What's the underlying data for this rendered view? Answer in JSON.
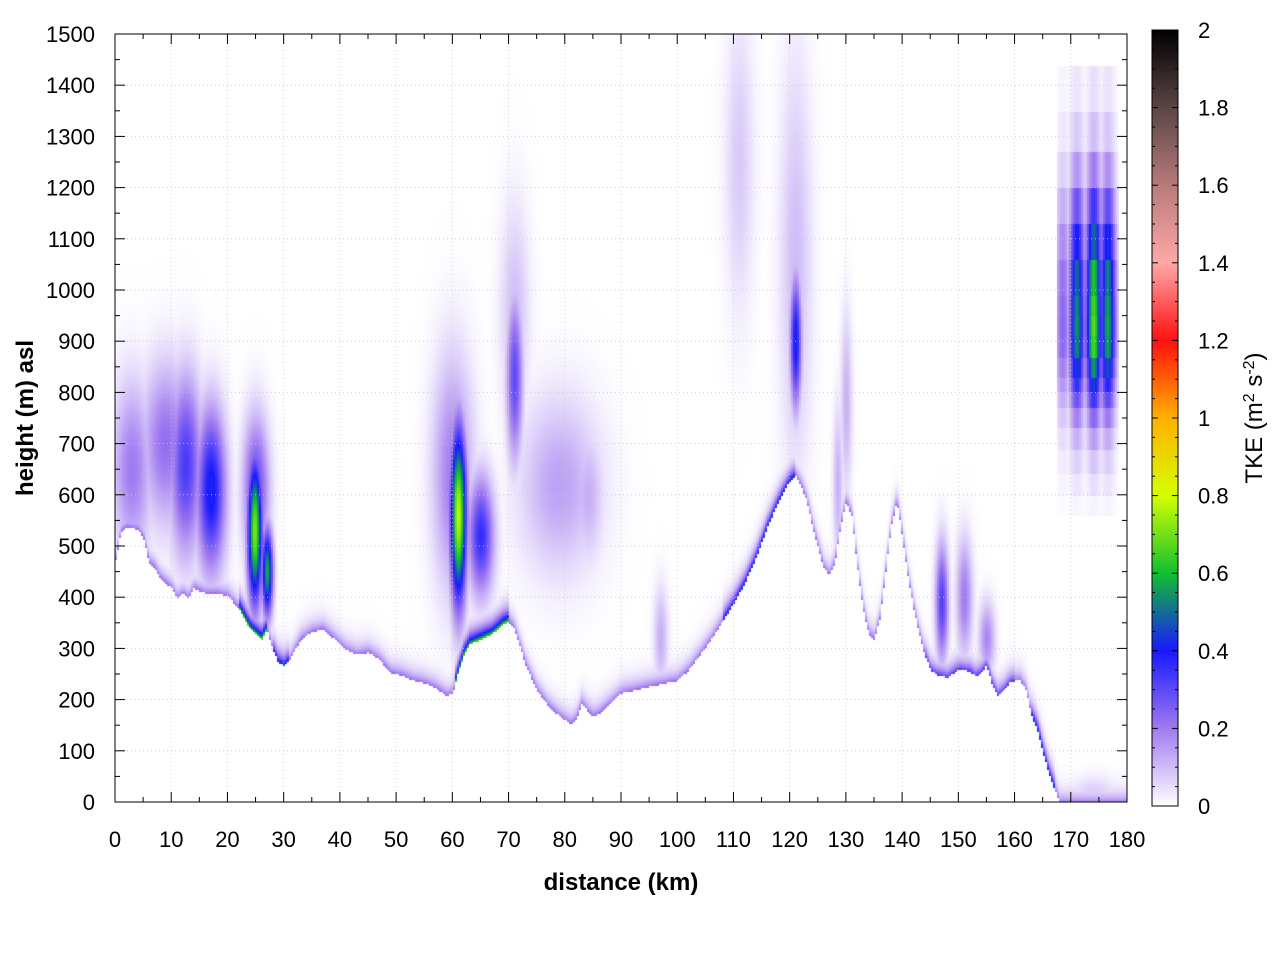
{
  "chart_data": {
    "type": "heatmap",
    "title": "",
    "xlabel": "distance (km)",
    "ylabel": "height (m) asl",
    "xlim": [
      0,
      180
    ],
    "ylim": [
      0,
      1500
    ],
    "xticks": [
      0,
      10,
      20,
      30,
      40,
      50,
      60,
      70,
      80,
      90,
      100,
      110,
      120,
      130,
      140,
      150,
      160,
      170,
      180
    ],
    "yticks": [
      0,
      100,
      200,
      300,
      400,
      500,
      600,
      700,
      800,
      900,
      1000,
      1100,
      1200,
      1300,
      1400,
      1500
    ],
    "grid": true,
    "colorbar": {
      "label_main": "TKE (m",
      "label_sup1": "2",
      "label_mid": " s",
      "label_sup2": "-2",
      "label_end": ")",
      "range": [
        0,
        2
      ],
      "ticks": [
        0,
        0.2,
        0.4,
        0.6,
        0.8,
        1,
        1.2,
        1.4,
        1.6,
        1.8,
        2
      ],
      "colors": [
        {
          "v": 0.0,
          "c": "#ffffff"
        },
        {
          "v": 0.2,
          "c": "#a07af0"
        },
        {
          "v": 0.4,
          "c": "#1818ff"
        },
        {
          "v": 0.6,
          "c": "#10c030"
        },
        {
          "v": 0.8,
          "c": "#d4ff00"
        },
        {
          "v": 1.0,
          "c": "#ffb000"
        },
        {
          "v": 1.2,
          "c": "#ff1010"
        },
        {
          "v": 1.4,
          "c": "#ffa8a8"
        },
        {
          "v": 1.6,
          "c": "#b87a7a"
        },
        {
          "v": 1.8,
          "c": "#5a4545"
        },
        {
          "v": 2.0,
          "c": "#000000"
        }
      ]
    },
    "terrain": [
      [
        0,
        470
      ],
      [
        1,
        530
      ],
      [
        2,
        540
      ],
      [
        4,
        535
      ],
      [
        5,
        520
      ],
      [
        6,
        470
      ],
      [
        7,
        460
      ],
      [
        8,
        440
      ],
      [
        10,
        420
      ],
      [
        11,
        400
      ],
      [
        12,
        410
      ],
      [
        13,
        400
      ],
      [
        14,
        420
      ],
      [
        16,
        410
      ],
      [
        18,
        410
      ],
      [
        20,
        405
      ],
      [
        22,
        380
      ],
      [
        24,
        340
      ],
      [
        26,
        320
      ],
      [
        27,
        340
      ],
      [
        28,
        300
      ],
      [
        29,
        275
      ],
      [
        30,
        270
      ],
      [
        31,
        280
      ],
      [
        33,
        320
      ],
      [
        35,
        335
      ],
      [
        37,
        340
      ],
      [
        39,
        320
      ],
      [
        41,
        300
      ],
      [
        43,
        290
      ],
      [
        45,
        295
      ],
      [
        47,
        280
      ],
      [
        49,
        255
      ],
      [
        51,
        250
      ],
      [
        53,
        240
      ],
      [
        55,
        235
      ],
      [
        57,
        225
      ],
      [
        59,
        210
      ],
      [
        60,
        215
      ],
      [
        61,
        255
      ],
      [
        62,
        290
      ],
      [
        63,
        310
      ],
      [
        65,
        320
      ],
      [
        67,
        330
      ],
      [
        69,
        350
      ],
      [
        70,
        355
      ],
      [
        71,
        340
      ],
      [
        73,
        270
      ],
      [
        75,
        220
      ],
      [
        77,
        190
      ],
      [
        79,
        170
      ],
      [
        81,
        155
      ],
      [
        82,
        165
      ],
      [
        83,
        195
      ],
      [
        84,
        180
      ],
      [
        85,
        170
      ],
      [
        86,
        175
      ],
      [
        88,
        195
      ],
      [
        90,
        215
      ],
      [
        92,
        220
      ],
      [
        95,
        228
      ],
      [
        98,
        235
      ],
      [
        100,
        240
      ],
      [
        102,
        260
      ],
      [
        104,
        290
      ],
      [
        106,
        320
      ],
      [
        108,
        355
      ],
      [
        110,
        390
      ],
      [
        112,
        430
      ],
      [
        114,
        480
      ],
      [
        116,
        540
      ],
      [
        118,
        590
      ],
      [
        120,
        630
      ],
      [
        121,
        640
      ],
      [
        122,
        620
      ],
      [
        123,
        590
      ],
      [
        124,
        540
      ],
      [
        125,
        500
      ],
      [
        126,
        460
      ],
      [
        127,
        445
      ],
      [
        128,
        470
      ],
      [
        129,
        540
      ],
      [
        130,
        590
      ],
      [
        131,
        560
      ],
      [
        132,
        460
      ],
      [
        133,
        380
      ],
      [
        134,
        330
      ],
      [
        135,
        320
      ],
      [
        136,
        360
      ],
      [
        137,
        450
      ],
      [
        138,
        540
      ],
      [
        139,
        590
      ],
      [
        140,
        520
      ],
      [
        141,
        440
      ],
      [
        142,
        380
      ],
      [
        143,
        330
      ],
      [
        144,
        290
      ],
      [
        145,
        260
      ],
      [
        146,
        252
      ],
      [
        148,
        245
      ],
      [
        150,
        262
      ],
      [
        152,
        258
      ],
      [
        153,
        248
      ],
      [
        154,
        255
      ],
      [
        155,
        270
      ],
      [
        156,
        230
      ],
      [
        157,
        210
      ],
      [
        158,
        220
      ],
      [
        159,
        235
      ],
      [
        160,
        240
      ],
      [
        161,
        240
      ],
      [
        162,
        220
      ],
      [
        163,
        170
      ],
      [
        164,
        145
      ],
      [
        165,
        100
      ],
      [
        166,
        60
      ],
      [
        167,
        30
      ],
      [
        168,
        0
      ],
      [
        180,
        0
      ]
    ],
    "features": [
      {
        "x": 3,
        "y": 650,
        "sx": 2.5,
        "sy": 120,
        "v": 0.2
      },
      {
        "x": 9,
        "y": 700,
        "sx": 3,
        "sy": 110,
        "v": 0.22
      },
      {
        "x": 12.5,
        "y": 660,
        "sx": 2,
        "sy": 120,
        "v": 0.33
      },
      {
        "x": 17,
        "y": 610,
        "sx": 1.8,
        "sy": 110,
        "v": 0.42
      },
      {
        "x": 24.8,
        "y": 530,
        "sx": 0.9,
        "sy": 100,
        "v": 0.72
      },
      {
        "x": 27,
        "y": 450,
        "sx": 0.7,
        "sy": 60,
        "v": 0.58
      },
      {
        "x": 25,
        "y": 610,
        "sx": 1.6,
        "sy": 100,
        "v": 0.3
      },
      {
        "x": 61,
        "y": 560,
        "sx": 1.0,
        "sy": 120,
        "v": 0.78
      },
      {
        "x": 65,
        "y": 520,
        "sx": 1.6,
        "sy": 80,
        "v": 0.36
      },
      {
        "x": 60,
        "y": 640,
        "sx": 2.5,
        "sy": 160,
        "v": 0.2
      },
      {
        "x": 71,
        "y": 830,
        "sx": 1.0,
        "sy": 110,
        "v": 0.3
      },
      {
        "x": 71,
        "y": 950,
        "sx": 1.8,
        "sy": 150,
        "v": 0.1
      },
      {
        "x": 79,
        "y": 620,
        "sx": 5,
        "sy": 120,
        "v": 0.14
      },
      {
        "x": 84,
        "y": 600,
        "sx": 2,
        "sy": 90,
        "v": 0.12
      },
      {
        "x": 97,
        "y": 320,
        "sx": 0.9,
        "sy": 70,
        "v": 0.12
      },
      {
        "x": 111,
        "y": 1250,
        "sx": 1.8,
        "sy": 200,
        "v": 0.08
      },
      {
        "x": 121,
        "y": 900,
        "sx": 0.7,
        "sy": 90,
        "v": 0.42
      },
      {
        "x": 121,
        "y": 1050,
        "sx": 2.0,
        "sy": 280,
        "v": 0.1
      },
      {
        "x": 128.5,
        "y": 620,
        "sx": 0.6,
        "sy": 110,
        "v": 0.12
      },
      {
        "x": 130,
        "y": 780,
        "sx": 0.7,
        "sy": 120,
        "v": 0.12
      },
      {
        "x": 147,
        "y": 390,
        "sx": 0.8,
        "sy": 80,
        "v": 0.32
      },
      {
        "x": 151,
        "y": 400,
        "sx": 1.0,
        "sy": 80,
        "v": 0.2
      },
      {
        "x": 155,
        "y": 320,
        "sx": 1.0,
        "sy": 50,
        "v": 0.18
      },
      {
        "x": 174,
        "y": 15,
        "sx": 3,
        "sy": 25,
        "v": 0.08
      }
    ],
    "block": {
      "x0": 167.5,
      "x1": 178.5,
      "col_centers": [
        168.5,
        171,
        174,
        176.5
      ],
      "col_weights": [
        0.35,
        0.8,
        1.0,
        0.85
      ],
      "rows": [
        [
          560,
          600,
          0.02
        ],
        [
          600,
          640,
          0.05
        ],
        [
          640,
          690,
          0.09
        ],
        [
          690,
          730,
          0.15
        ],
        [
          730,
          770,
          0.24
        ],
        [
          770,
          800,
          0.35
        ],
        [
          800,
          830,
          0.45
        ],
        [
          830,
          870,
          0.55
        ],
        [
          870,
          910,
          0.66
        ],
        [
          910,
          950,
          0.68
        ],
        [
          950,
          990,
          0.66
        ],
        [
          990,
          1060,
          0.62
        ],
        [
          1060,
          1130,
          0.5
        ],
        [
          1130,
          1200,
          0.35
        ],
        [
          1200,
          1270,
          0.2
        ],
        [
          1270,
          1350,
          0.1
        ],
        [
          1350,
          1440,
          0.05
        ]
      ]
    }
  }
}
